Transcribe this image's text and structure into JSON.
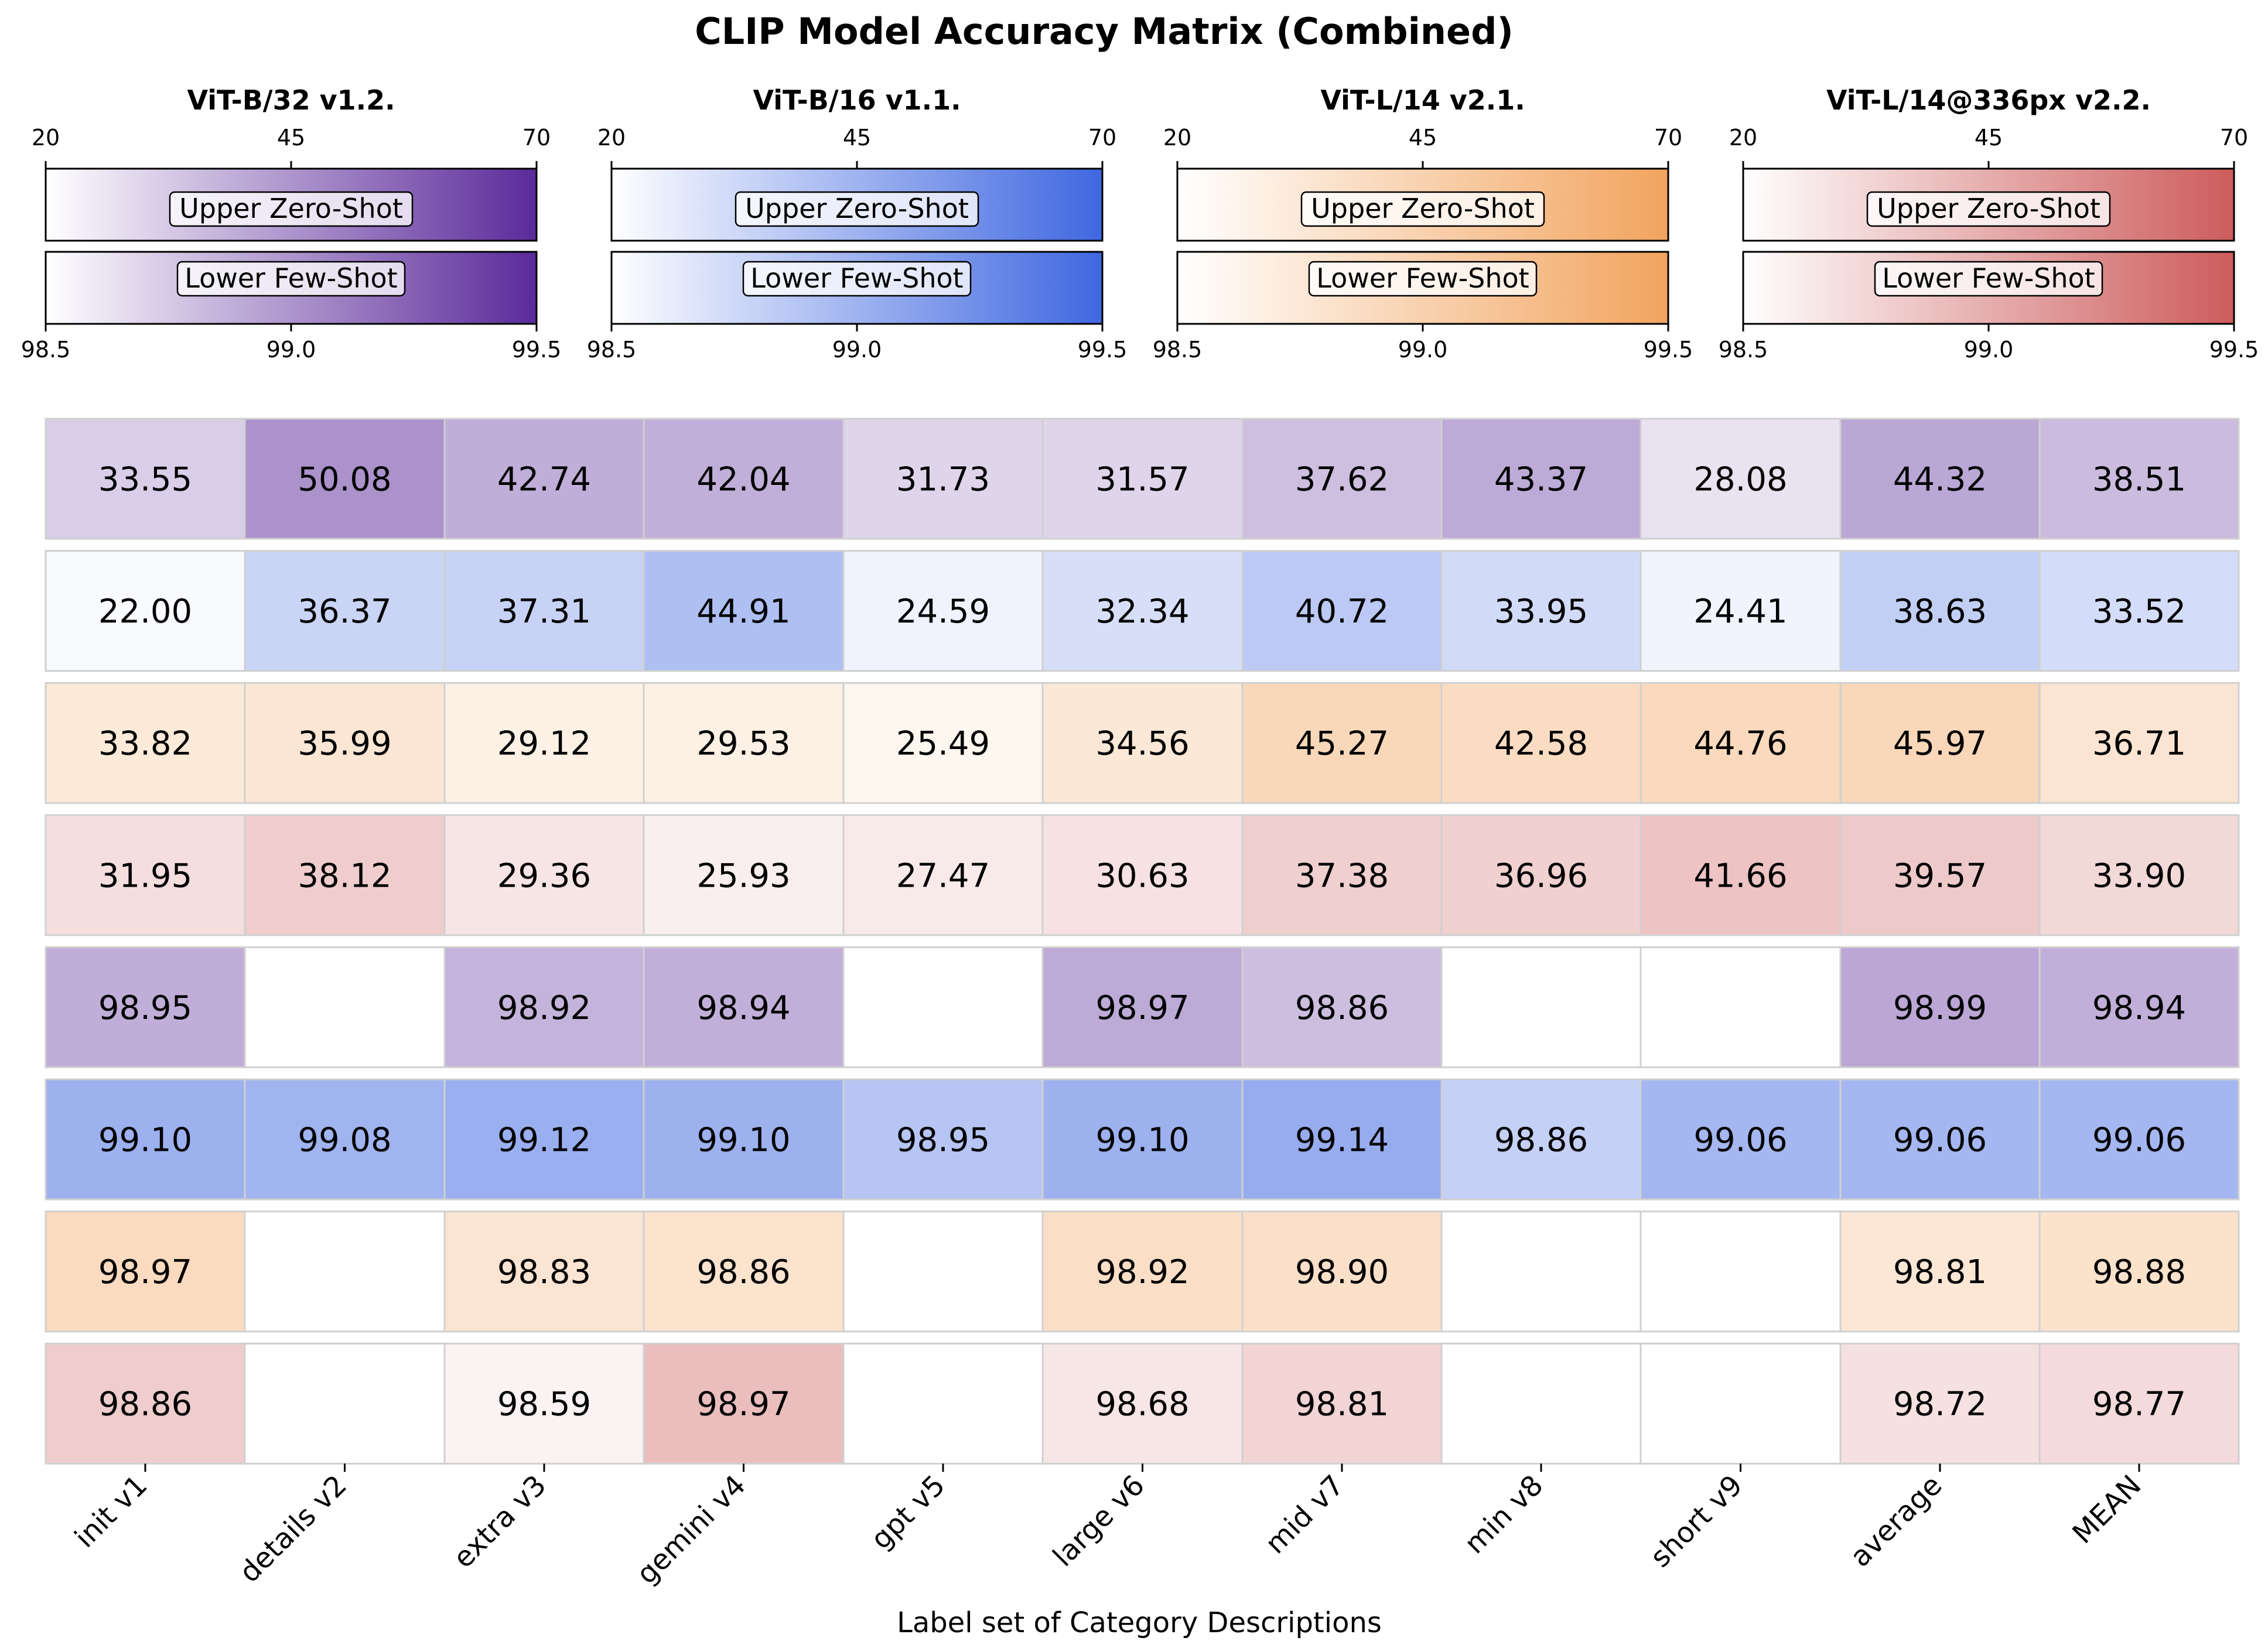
{
  "chart_data": {
    "type": "heatmap",
    "title": "CLIP Model Accuracy Matrix (Combined)",
    "xlabel": "Label set of Category Descriptions",
    "columns": [
      "init v1",
      "details v2",
      "extra v3",
      "gemini v4",
      "gpt v5",
      "large v6",
      "mid v7",
      "min v8",
      "short v9",
      "average",
      "MEAN"
    ],
    "models": [
      {
        "name": "ViT-B/32 v1.2.",
        "color": "#5b2a9a"
      },
      {
        "name": "ViT-B/16 v1.1.",
        "color": "#3f67e0"
      },
      {
        "name": "ViT-L/14 v2.1.",
        "color": "#f2a45f"
      },
      {
        "name": "ViT-L/14@336px v2.2.",
        "color": "#cd5c5c"
      }
    ],
    "colorbars": {
      "upper_label": "Upper Zero-Shot",
      "lower_label": "Lower Few-Shot",
      "upper_range": [
        20,
        70
      ],
      "upper_ticks": [
        "20",
        "45",
        "70"
      ],
      "lower_range": [
        98.5,
        99.5
      ],
      "lower_ticks": [
        "98.5",
        "99.0",
        "99.5"
      ]
    },
    "rows": [
      {
        "model": 0,
        "section": "upper",
        "values": [
          33.55,
          50.08,
          42.74,
          42.04,
          31.73,
          31.57,
          37.62,
          43.37,
          28.08,
          44.32,
          38.51
        ]
      },
      {
        "model": 1,
        "section": "upper",
        "values": [
          22.0,
          36.37,
          37.31,
          44.91,
          24.59,
          32.34,
          40.72,
          33.95,
          24.41,
          38.63,
          33.52
        ]
      },
      {
        "model": 2,
        "section": "upper",
        "values": [
          33.82,
          35.99,
          29.12,
          29.53,
          25.49,
          34.56,
          45.27,
          42.58,
          44.76,
          45.97,
          36.71
        ]
      },
      {
        "model": 3,
        "section": "upper",
        "values": [
          31.95,
          38.12,
          29.36,
          25.93,
          27.47,
          30.63,
          37.38,
          36.96,
          41.66,
          39.57,
          33.9
        ]
      },
      {
        "model": 0,
        "section": "lower",
        "values": [
          98.95,
          null,
          98.92,
          98.94,
          null,
          98.97,
          98.86,
          null,
          null,
          98.99,
          98.94
        ]
      },
      {
        "model": 1,
        "section": "lower",
        "values": [
          99.1,
          99.08,
          99.12,
          99.1,
          98.95,
          99.1,
          99.14,
          98.86,
          99.06,
          99.06,
          99.06
        ]
      },
      {
        "model": 2,
        "section": "lower",
        "values": [
          98.97,
          null,
          98.83,
          98.86,
          null,
          98.92,
          98.9,
          null,
          null,
          98.81,
          98.88
        ]
      },
      {
        "model": 3,
        "section": "lower",
        "values": [
          98.86,
          null,
          98.59,
          98.97,
          null,
          98.68,
          98.81,
          null,
          null,
          98.72,
          98.77
        ]
      }
    ]
  }
}
